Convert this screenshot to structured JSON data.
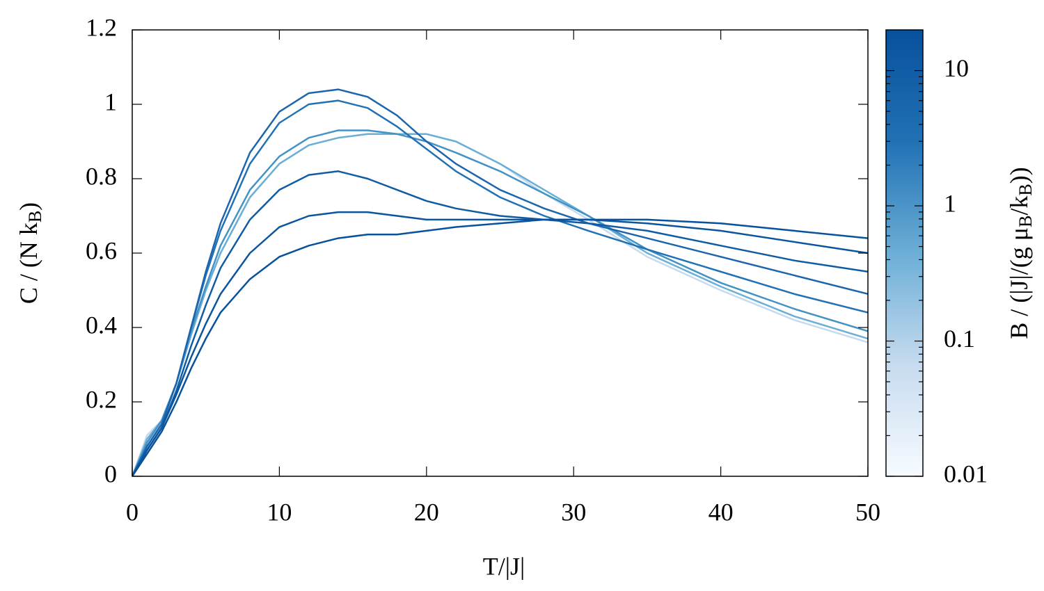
{
  "chart_data": {
    "type": "line",
    "xlabel": "T/|J|",
    "ylabel": [
      "C / (N k",
      "B",
      ")"
    ],
    "colorbar_label": [
      "B / (|J|/(g μ",
      "B",
      "/k",
      "B",
      "))"
    ],
    "x": [
      0,
      1,
      2,
      3,
      4,
      5,
      6,
      8,
      10,
      12,
      14,
      16,
      18,
      20,
      22,
      25,
      28,
      31,
      35,
      40,
      45,
      50
    ],
    "series": [
      {
        "b": 0.1,
        "color": "#c6dbef",
        "values": [
          0,
          0.11,
          0.15,
          0.25,
          0.38,
          0.5,
          0.6,
          0.75,
          0.84,
          0.89,
          0.91,
          0.92,
          0.92,
          0.92,
          0.9,
          0.84,
          0.76,
          0.69,
          0.59,
          0.5,
          0.42,
          0.36
        ]
      },
      {
        "b": 0.5,
        "color": "#6baed6",
        "values": [
          0,
          0.1,
          0.15,
          0.25,
          0.38,
          0.5,
          0.6,
          0.75,
          0.84,
          0.89,
          0.91,
          0.92,
          0.92,
          0.92,
          0.9,
          0.84,
          0.77,
          0.7,
          0.6,
          0.51,
          0.43,
          0.37
        ]
      },
      {
        "b": 1,
        "color": "#4292c6",
        "values": [
          0,
          0.09,
          0.15,
          0.25,
          0.39,
          0.51,
          0.62,
          0.77,
          0.86,
          0.91,
          0.93,
          0.93,
          0.92,
          0.9,
          0.87,
          0.82,
          0.76,
          0.7,
          0.61,
          0.52,
          0.45,
          0.39
        ]
      },
      {
        "b": 3,
        "color": "#2171b5",
        "values": [
          0,
          0.08,
          0.14,
          0.25,
          0.4,
          0.54,
          0.66,
          0.84,
          0.95,
          1.0,
          1.01,
          0.99,
          0.94,
          0.88,
          0.82,
          0.75,
          0.7,
          0.66,
          0.61,
          0.55,
          0.49,
          0.44
        ]
      },
      {
        "b": 5,
        "color": "#1c65ad",
        "values": [
          0,
          0.08,
          0.14,
          0.25,
          0.4,
          0.55,
          0.68,
          0.87,
          0.98,
          1.03,
          1.04,
          1.02,
          0.97,
          0.9,
          0.84,
          0.77,
          0.72,
          0.68,
          0.64,
          0.59,
          0.54,
          0.49
        ]
      },
      {
        "b": 8,
        "color": "#105ca4",
        "values": [
          0,
          0.07,
          0.13,
          0.23,
          0.35,
          0.46,
          0.56,
          0.69,
          0.77,
          0.81,
          0.82,
          0.8,
          0.77,
          0.74,
          0.72,
          0.7,
          0.69,
          0.68,
          0.66,
          0.62,
          0.58,
          0.55
        ]
      },
      {
        "b": 12,
        "color": "#0b559f",
        "values": [
          0,
          0.07,
          0.13,
          0.22,
          0.32,
          0.41,
          0.49,
          0.6,
          0.67,
          0.7,
          0.71,
          0.71,
          0.7,
          0.69,
          0.69,
          0.69,
          0.69,
          0.69,
          0.68,
          0.66,
          0.63,
          0.6
        ]
      },
      {
        "b": 20,
        "color": "#08519c",
        "values": [
          0,
          0.06,
          0.12,
          0.2,
          0.29,
          0.37,
          0.44,
          0.53,
          0.59,
          0.62,
          0.64,
          0.65,
          0.65,
          0.66,
          0.67,
          0.68,
          0.69,
          0.69,
          0.69,
          0.68,
          0.66,
          0.64
        ]
      }
    ],
    "xlim": [
      0,
      50
    ],
    "xticks": [
      0,
      10,
      20,
      30,
      40,
      50
    ],
    "ylim": [
      0,
      1.2
    ],
    "yticks": [
      0,
      0.2,
      0.4,
      0.6,
      0.8,
      1,
      1.2
    ],
    "colorbar": {
      "log": true,
      "clim": [
        0.01,
        20
      ],
      "ticks": [
        0.01,
        0.1,
        1,
        10
      ],
      "colors": [
        "#f7fbff",
        "#c6dbef",
        "#6baed6",
        "#2171b5",
        "#08519c"
      ]
    }
  }
}
